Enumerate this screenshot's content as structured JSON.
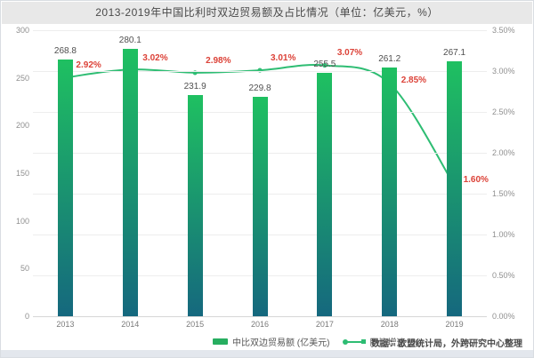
{
  "page": {
    "title": "2013-2019年中国比利时双边贸易额及占比情况（单位：亿美元，%）"
  },
  "chart_data": {
    "type": "bar",
    "title": "2013-2019年中国比利时双边贸易额及占比情况（单位：亿美元，%）",
    "categories": [
      "2013",
      "2014",
      "2015",
      "2016",
      "2017",
      "2018",
      "2019"
    ],
    "series": [
      {
        "name": "中比双边贸易额 (亿美元)",
        "type": "bar",
        "values": [
          268.8,
          280.1,
          231.9,
          229.8,
          255.5,
          261.2,
          267.1
        ],
        "labels": [
          "268.8",
          "280.1",
          "231.9",
          "229.8",
          "255.5",
          "261.2",
          "267.1"
        ],
        "color_top": "#1fc061",
        "color_bottom": "#15687e"
      },
      {
        "name": "同比增速 (%)",
        "type": "line",
        "values": [
          2.92,
          3.02,
          2.98,
          3.01,
          3.07,
          2.85,
          1.6
        ],
        "labels": [
          "2.92%",
          "3.02%",
          "2.98%",
          "3.01%",
          "3.07%",
          "2.85%",
          "1.60%"
        ],
        "color": "#2ebd73",
        "label_color": "#dc4238"
      }
    ],
    "left_axis": {
      "min": 0,
      "max": 300,
      "tick_step": 50,
      "tick_labels": [
        "0",
        "50",
        "100",
        "150",
        "200",
        "250",
        "300"
      ]
    },
    "right_axis": {
      "min": 0,
      "max": 3.5,
      "tick_step": 0.5,
      "tick_labels": [
        "0.00%",
        "0.50%",
        "1.00%",
        "1.50%",
        "2.00%",
        "2.50%",
        "3.00%",
        "3.50%"
      ]
    },
    "grid": true,
    "legend_position": "bottom"
  },
  "footer": {
    "source": "数据：欧盟统计局，外跨研究中心整理"
  }
}
